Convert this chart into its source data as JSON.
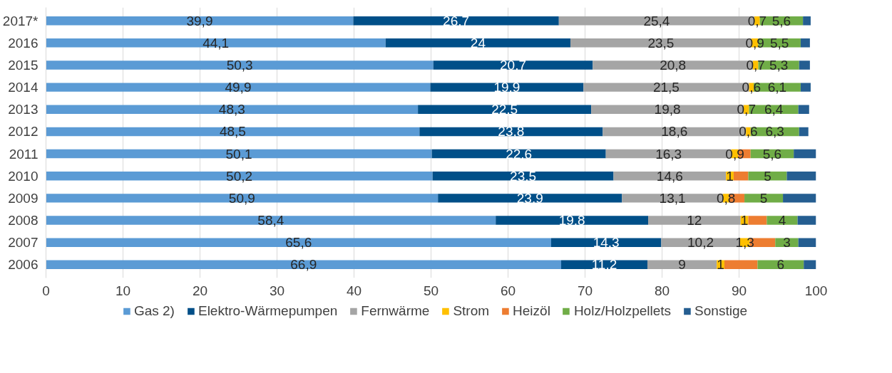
{
  "chart_data": {
    "type": "bar",
    "orientation": "horizontal",
    "stacked": true,
    "categories": [
      "2017*",
      "2016",
      "2015",
      "2014",
      "2013",
      "2012",
      "2011",
      "2010",
      "2009",
      "2008",
      "2007",
      "2006"
    ],
    "series": [
      {
        "name": "Gas 2)",
        "color": "#5b9bd5",
        "values": [
          39.9,
          44.1,
          50.3,
          49.9,
          48.3,
          48.5,
          50.1,
          50.2,
          50.9,
          58.4,
          65.6,
          66.9
        ],
        "value_labels": [
          "39,9",
          "44,1",
          "50,3",
          "49,9",
          "48,3",
          "48,5",
          "50,1",
          "50,2",
          "50,9",
          "58,4",
          "65,6",
          "66,9"
        ]
      },
      {
        "name": "Elektro-Wärmepumpen",
        "color": "#004f88",
        "values": [
          26.7,
          24,
          20.7,
          19.9,
          22.5,
          23.8,
          22.6,
          23.5,
          23.9,
          19.8,
          14.3,
          11.2
        ],
        "value_labels": [
          "26,7",
          "24",
          "20,7",
          "19,9",
          "22,5",
          "23,8",
          "22,6",
          "23,5",
          "23,9",
          "19,8",
          "14,3",
          "11,2"
        ]
      },
      {
        "name": "Fernwärme",
        "color": "#a5a5a5",
        "values": [
          25.4,
          23.5,
          20.8,
          21.5,
          19.8,
          18.6,
          16.3,
          14.6,
          13.1,
          12,
          10.2,
          9
        ],
        "value_labels": [
          "25,4",
          "23,5",
          "20,8",
          "21,5",
          "19,8",
          "18,6",
          "16,3",
          "14,6",
          "13,1",
          "12",
          "10,2",
          "9"
        ]
      },
      {
        "name": "Strom",
        "color": "#ffc000",
        "values": [
          0.7,
          0.9,
          0.7,
          0.6,
          0.7,
          0.6,
          0.9,
          1,
          0.8,
          1,
          1.3,
          1
        ],
        "value_labels": [
          "0,7",
          "0,9",
          "0,7",
          "0,6",
          "0,7",
          "0,6",
          "0,9",
          "1",
          "0,8",
          "1",
          "1,3",
          "1"
        ]
      },
      {
        "name": "Heizöl",
        "color": "#ed7d31",
        "values": [
          null,
          null,
          null,
          null,
          null,
          null,
          1.6,
          1.9,
          2.0,
          2.4,
          3.3,
          4.3
        ]
      },
      {
        "name": "Holz/Holzpellets",
        "color": "#70ad47",
        "values": [
          5.6,
          5.5,
          5.3,
          6.1,
          6.4,
          6.3,
          5.6,
          5,
          5,
          4,
          3,
          6
        ],
        "value_labels": [
          "5,6",
          "5,5",
          "5,3",
          "6,1",
          "6,4",
          "6,3",
          "5,6",
          "5",
          "5",
          "4",
          "3",
          "6"
        ]
      },
      {
        "name": "Sonstige",
        "color": "#255e91",
        "values": [
          1.0,
          1.2,
          1.4,
          1.3,
          1.4,
          1.2,
          2.9,
          3.8,
          4.3,
          2.4,
          2.3,
          1.6
        ]
      }
    ],
    "xlim": [
      0,
      100
    ],
    "xticks": [
      0,
      10,
      20,
      30,
      40,
      50,
      60,
      70,
      80,
      90,
      100
    ],
    "grid": "x",
    "legend": "bottom"
  }
}
